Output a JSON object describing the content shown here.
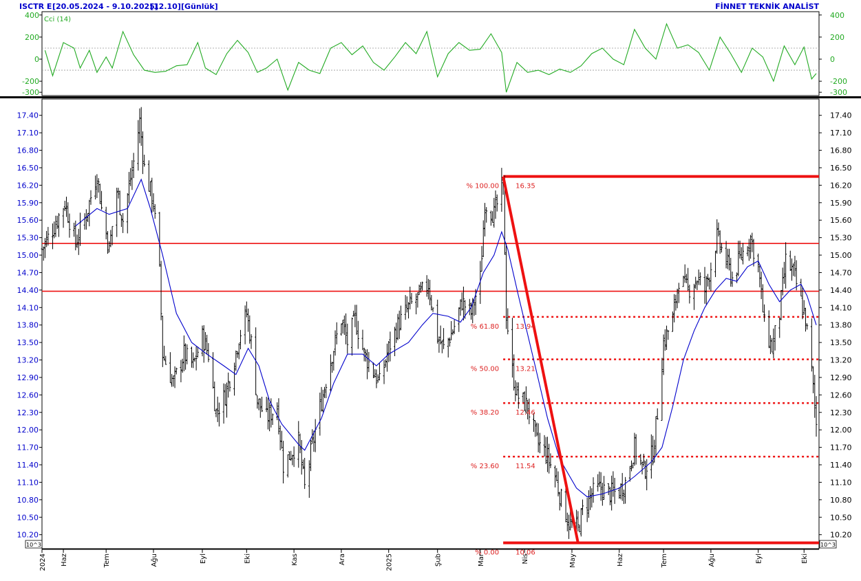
{
  "header": {
    "symbol": "ISCTR E",
    "date_range": "[20.05.2024 - 9.10.2025]",
    "last_price": "[12.10]",
    "period": "[Günlük]",
    "provider": "FİNNET TEKNİK ANALİST"
  },
  "colors": {
    "price_bars": "#000000",
    "moving_average": "#0000cc",
    "cci_line": "#22aa22",
    "fib_lines": "#ee1111",
    "axis_text": "#0000cc",
    "fib_text": "#dd2222"
  },
  "chart_data": [
    {
      "type": "line",
      "title": "Cci (14)",
      "yticks": [
        400,
        200,
        0,
        -200,
        -300
      ],
      "ylim": [
        -330,
        430
      ],
      "reference_lines": [
        100,
        -100
      ],
      "series": [
        {
          "name": "Cci (14)",
          "points": [
            [
              "2024-05-22",
              80
            ],
            [
              "2024-05-27",
              -150
            ],
            [
              "2024-06-03",
              150
            ],
            [
              "2024-06-10",
              100
            ],
            [
              "2024-06-14",
              -80
            ],
            [
              "2024-06-20",
              80
            ],
            [
              "2024-06-25",
              -120
            ],
            [
              "2024-07-01",
              20
            ],
            [
              "2024-07-05",
              -80
            ],
            [
              "2024-07-12",
              250
            ],
            [
              "2024-07-19",
              40
            ],
            [
              "2024-07-26",
              -100
            ],
            [
              "2024-08-02",
              -120
            ],
            [
              "2024-08-09",
              -110
            ],
            [
              "2024-08-16",
              -60
            ],
            [
              "2024-08-23",
              -50
            ],
            [
              "2024-08-30",
              150
            ],
            [
              "2024-09-04",
              -80
            ],
            [
              "2024-09-11",
              -140
            ],
            [
              "2024-09-18",
              50
            ],
            [
              "2024-09-25",
              170
            ],
            [
              "2024-10-02",
              60
            ],
            [
              "2024-10-08",
              -120
            ],
            [
              "2024-10-14",
              -80
            ],
            [
              "2024-10-21",
              0
            ],
            [
              "2024-10-28",
              -280
            ],
            [
              "2024-11-04",
              -30
            ],
            [
              "2024-11-11",
              -100
            ],
            [
              "2024-11-18",
              -130
            ],
            [
              "2024-11-25",
              100
            ],
            [
              "2024-12-02",
              150
            ],
            [
              "2024-12-09",
              40
            ],
            [
              "2024-12-16",
              120
            ],
            [
              "2024-12-23",
              -30
            ],
            [
              "2024-12-30",
              -100
            ],
            [
              "2025-01-06",
              20
            ],
            [
              "2025-01-13",
              150
            ],
            [
              "2025-01-20",
              50
            ],
            [
              "2025-01-27",
              250
            ],
            [
              "2025-02-03",
              -160
            ],
            [
              "2025-02-10",
              50
            ],
            [
              "2025-02-17",
              150
            ],
            [
              "2025-02-24",
              80
            ],
            [
              "2025-03-03",
              90
            ],
            [
              "2025-03-10",
              230
            ],
            [
              "2025-03-17",
              60
            ],
            [
              "2025-03-20",
              -300
            ],
            [
              "2025-03-27",
              -30
            ],
            [
              "2025-04-03",
              -120
            ],
            [
              "2025-04-10",
              -100
            ],
            [
              "2025-04-17",
              -140
            ],
            [
              "2025-04-24",
              -90
            ],
            [
              "2025-05-01",
              -120
            ],
            [
              "2025-05-08",
              -60
            ],
            [
              "2025-05-15",
              50
            ],
            [
              "2025-05-22",
              100
            ],
            [
              "2025-05-29",
              0
            ],
            [
              "2025-06-05",
              -50
            ],
            [
              "2025-06-12",
              270
            ],
            [
              "2025-06-19",
              100
            ],
            [
              "2025-06-26",
              0
            ],
            [
              "2025-07-03",
              320
            ],
            [
              "2025-07-10",
              100
            ],
            [
              "2025-07-17",
              130
            ],
            [
              "2025-07-24",
              60
            ],
            [
              "2025-07-31",
              -100
            ],
            [
              "2025-08-07",
              200
            ],
            [
              "2025-08-14",
              50
            ],
            [
              "2025-08-21",
              -120
            ],
            [
              "2025-08-28",
              100
            ],
            [
              "2025-09-04",
              20
            ],
            [
              "2025-09-11",
              -200
            ],
            [
              "2025-09-18",
              120
            ],
            [
              "2025-09-25",
              -50
            ],
            [
              "2025-10-01",
              110
            ],
            [
              "2025-10-06",
              -180
            ],
            [
              "2025-10-09",
              -130
            ]
          ]
        }
      ]
    },
    {
      "type": "bar",
      "subtype": "ohlc",
      "yticks": [
        "17.40",
        "17.10",
        "16.80",
        "16.50",
        "16.20",
        "15.90",
        "15.60",
        "15.30",
        "15.00",
        "14.70",
        "14.40",
        "14.10",
        "13.80",
        "13.50",
        "13.20",
        "12.90",
        "12.60",
        "12.30",
        "12.00",
        "11.70",
        "11.40",
        "11.10",
        "10.80",
        "10.50",
        "10.20"
      ],
      "ylim": [
        9.96,
        17.68
      ],
      "scale_label": "10^3",
      "xticks": [
        {
          "date": "2024-05-20",
          "label": "2024"
        },
        {
          "date": "2024-06-03",
          "label": "Haz"
        },
        {
          "date": "2024-07-01",
          "label": "Tem"
        },
        {
          "date": "2024-08-01",
          "label": "Ağu"
        },
        {
          "date": "2024-09-02",
          "label": "Eyl"
        },
        {
          "date": "2024-10-01",
          "label": "Eki"
        },
        {
          "date": "2024-11-01",
          "label": "Kas"
        },
        {
          "date": "2024-12-02",
          "label": "Ara"
        },
        {
          "date": "2025-01-02",
          "label": "2025"
        },
        {
          "date": "2025-02-03",
          "label": "Şub"
        },
        {
          "date": "2025-03-03",
          "label": "Mar"
        },
        {
          "date": "2025-04-01",
          "label": "Nis"
        },
        {
          "date": "2025-05-02",
          "label": "May"
        },
        {
          "date": "2025-06-02",
          "label": "Haz"
        },
        {
          "date": "2025-07-01",
          "label": "Tem"
        },
        {
          "date": "2025-08-01",
          "label": "Ağu"
        },
        {
          "date": "2025-09-01",
          "label": "Eyl"
        },
        {
          "date": "2025-10-01",
          "label": "Eki"
        }
      ],
      "price_path": [
        [
          "2024-05-20",
          15.1
        ],
        [
          "2024-05-28",
          15.5
        ],
        [
          "2024-06-04",
          15.9
        ],
        [
          "2024-06-11",
          15.2
        ],
        [
          "2024-06-18",
          15.7
        ],
        [
          "2024-06-25",
          16.4
        ],
        [
          "2024-06-28",
          15.8
        ],
        [
          "2024-07-03",
          15.1
        ],
        [
          "2024-07-08",
          16.1
        ],
        [
          "2024-07-12",
          15.6
        ],
        [
          "2024-07-19",
          16.6
        ],
        [
          "2024-07-23",
          17.3
        ],
        [
          "2024-07-26",
          16.5
        ],
        [
          "2024-08-01",
          15.9
        ],
        [
          "2024-08-05",
          14.7
        ],
        [
          "2024-08-07",
          13.3
        ],
        [
          "2024-08-14",
          12.8
        ],
        [
          "2024-08-21",
          13.3
        ],
        [
          "2024-08-27",
          13.1
        ],
        [
          "2024-09-02",
          13.6
        ],
        [
          "2024-09-06",
          13.3
        ],
        [
          "2024-09-11",
          12.3
        ],
        [
          "2024-09-17",
          12.6
        ],
        [
          "2024-09-23",
          13.2
        ],
        [
          "2024-09-26",
          13.6
        ],
        [
          "2024-10-01",
          14.0
        ],
        [
          "2024-10-04",
          13.5
        ],
        [
          "2024-10-08",
          12.5
        ],
        [
          "2024-10-14",
          12.2
        ],
        [
          "2024-10-21",
          12.4
        ],
        [
          "2024-10-25",
          11.4
        ],
        [
          "2024-10-30",
          11.6
        ],
        [
          "2024-11-04",
          11.8
        ],
        [
          "2024-11-08",
          11.0
        ],
        [
          "2024-11-12",
          11.6
        ],
        [
          "2024-11-19",
          12.5
        ],
        [
          "2024-11-25",
          13.2
        ],
        [
          "2024-12-02",
          13.9
        ],
        [
          "2024-12-06",
          13.5
        ],
        [
          "2024-12-11",
          13.9
        ],
        [
          "2024-12-17",
          13.3
        ],
        [
          "2024-12-23",
          13.0
        ],
        [
          "2024-12-27",
          12.8
        ],
        [
          "2025-01-02",
          13.4
        ],
        [
          "2025-01-08",
          13.8
        ],
        [
          "2025-01-15",
          14.1
        ],
        [
          "2025-01-22",
          14.3
        ],
        [
          "2025-01-28",
          14.5
        ],
        [
          "2025-02-03",
          13.6
        ],
        [
          "2025-02-07",
          13.4
        ],
        [
          "2025-02-13",
          13.7
        ],
        [
          "2025-02-19",
          14.2
        ],
        [
          "2025-02-25",
          14.0
        ],
        [
          "2025-03-03",
          14.6
        ],
        [
          "2025-03-06",
          15.9
        ],
        [
          "2025-03-12",
          15.7
        ],
        [
          "2025-03-18",
          16.2
        ],
        [
          "2025-03-20",
          14.0
        ],
        [
          "2025-03-24",
          13.0
        ],
        [
          "2025-03-27",
          12.6
        ],
        [
          "2025-04-03",
          12.4
        ],
        [
          "2025-04-09",
          11.8
        ],
        [
          "2025-04-15",
          11.6
        ],
        [
          "2025-04-21",
          11.2
        ],
        [
          "2025-04-25",
          10.8
        ],
        [
          "2025-04-30",
          10.4
        ],
        [
          "2025-05-06",
          10.3
        ],
        [
          "2025-05-09",
          10.6
        ],
        [
          "2025-05-15",
          10.9
        ],
        [
          "2025-05-21",
          11.0
        ],
        [
          "2025-05-27",
          10.9
        ],
        [
          "2025-06-02",
          10.95
        ],
        [
          "2025-06-06",
          11.1
        ],
        [
          "2025-06-12",
          11.7
        ],
        [
          "2025-06-18",
          11.3
        ],
        [
          "2025-06-24",
          11.6
        ],
        [
          "2025-06-27",
          12.3
        ],
        [
          "2025-07-01",
          13.5
        ],
        [
          "2025-07-07",
          13.9
        ],
        [
          "2025-07-11",
          14.6
        ],
        [
          "2025-07-17",
          14.4
        ],
        [
          "2025-07-23",
          14.6
        ],
        [
          "2025-07-28",
          14.4
        ],
        [
          "2025-08-01",
          14.8
        ],
        [
          "2025-08-05",
          15.3
        ],
        [
          "2025-08-11",
          14.9
        ],
        [
          "2025-08-15",
          14.6
        ],
        [
          "2025-08-21",
          15.0
        ],
        [
          "2025-08-27",
          15.3
        ],
        [
          "2025-09-01",
          14.8
        ],
        [
          "2025-09-05",
          13.8
        ],
        [
          "2025-09-10",
          13.4
        ],
        [
          "2025-09-15",
          14.0
        ],
        [
          "2025-09-19",
          14.9
        ],
        [
          "2025-09-24",
          14.7
        ],
        [
          "2025-09-29",
          14.2
        ],
        [
          "2025-10-02",
          13.9
        ],
        [
          "2025-10-06",
          13.0
        ],
        [
          "2025-10-09",
          12.1
        ]
      ],
      "moving_average": [
        [
          "2024-06-11",
          15.5
        ],
        [
          "2024-06-25",
          15.8
        ],
        [
          "2024-07-03",
          15.7
        ],
        [
          "2024-07-15",
          15.8
        ],
        [
          "2024-07-24",
          16.3
        ],
        [
          "2024-07-30",
          15.8
        ],
        [
          "2024-08-07",
          15.0
        ],
        [
          "2024-08-16",
          14.0
        ],
        [
          "2024-08-26",
          13.5
        ],
        [
          "2024-09-05",
          13.3
        ],
        [
          "2024-09-16",
          13.1
        ],
        [
          "2024-09-24",
          12.95
        ],
        [
          "2024-10-02",
          13.4
        ],
        [
          "2024-10-09",
          13.1
        ],
        [
          "2024-10-16",
          12.5
        ],
        [
          "2024-10-24",
          12.1
        ],
        [
          "2024-11-04",
          11.75
        ],
        [
          "2024-11-08",
          11.65
        ],
        [
          "2024-11-19",
          12.2
        ],
        [
          "2024-11-27",
          12.8
        ],
        [
          "2024-12-06",
          13.3
        ],
        [
          "2024-12-16",
          13.3
        ],
        [
          "2024-12-25",
          13.1
        ],
        [
          "2025-01-02",
          13.3
        ],
        [
          "2025-01-15",
          13.5
        ],
        [
          "2025-01-24",
          13.8
        ],
        [
          "2025-01-31",
          14.0
        ],
        [
          "2025-02-10",
          13.95
        ],
        [
          "2025-02-18",
          13.85
        ],
        [
          "2025-02-25",
          14.1
        ],
        [
          "2025-03-05",
          14.7
        ],
        [
          "2025-03-12",
          15.0
        ],
        [
          "2025-03-17",
          15.4
        ],
        [
          "2025-03-21",
          15.1
        ],
        [
          "2025-03-28",
          14.3
        ],
        [
          "2025-04-07",
          13.2
        ],
        [
          "2025-04-16",
          12.2
        ],
        [
          "2025-04-24",
          11.5
        ],
        [
          "2025-05-05",
          11.0
        ],
        [
          "2025-05-12",
          10.85
        ],
        [
          "2025-05-22",
          10.9
        ],
        [
          "2025-06-02",
          11.0
        ],
        [
          "2025-06-12",
          11.2
        ],
        [
          "2025-06-23",
          11.45
        ],
        [
          "2025-06-30",
          11.7
        ],
        [
          "2025-07-07",
          12.4
        ],
        [
          "2025-07-14",
          13.2
        ],
        [
          "2025-07-21",
          13.7
        ],
        [
          "2025-07-28",
          14.1
        ],
        [
          "2025-08-04",
          14.4
        ],
        [
          "2025-08-11",
          14.6
        ],
        [
          "2025-08-18",
          14.55
        ],
        [
          "2025-08-25",
          14.8
        ],
        [
          "2025-09-01",
          14.9
        ],
        [
          "2025-09-08",
          14.5
        ],
        [
          "2025-09-15",
          14.2
        ],
        [
          "2025-09-22",
          14.4
        ],
        [
          "2025-09-29",
          14.5
        ],
        [
          "2025-10-03",
          14.3
        ],
        [
          "2025-10-09",
          13.8
        ]
      ],
      "horizontal_lines": [
        15.2,
        14.38
      ],
      "fibonacci": {
        "start": {
          "date": "2025-03-18",
          "value": 16.35
        },
        "end": {
          "date": "2025-05-06",
          "value": 10.06
        },
        "levels": [
          {
            "pct": "% 100.00",
            "value": 16.35,
            "value_label": "16.35",
            "style": "solid"
          },
          {
            "pct": "% 61.80",
            "value": 13.94,
            "value_label": "13.94",
            "style": "dotted"
          },
          {
            "pct": "% 50.00",
            "value": 13.21,
            "value_label": "13.21",
            "style": "dotted"
          },
          {
            "pct": "% 38.20",
            "value": 12.46,
            "value_label": "12.46",
            "style": "dotted"
          },
          {
            "pct": "% 23.60",
            "value": 11.54,
            "value_label": "11.54",
            "style": "dotted"
          },
          {
            "pct": "% 0.00",
            "value": 10.06,
            "value_label": "10.06",
            "style": "solid"
          }
        ]
      }
    }
  ]
}
